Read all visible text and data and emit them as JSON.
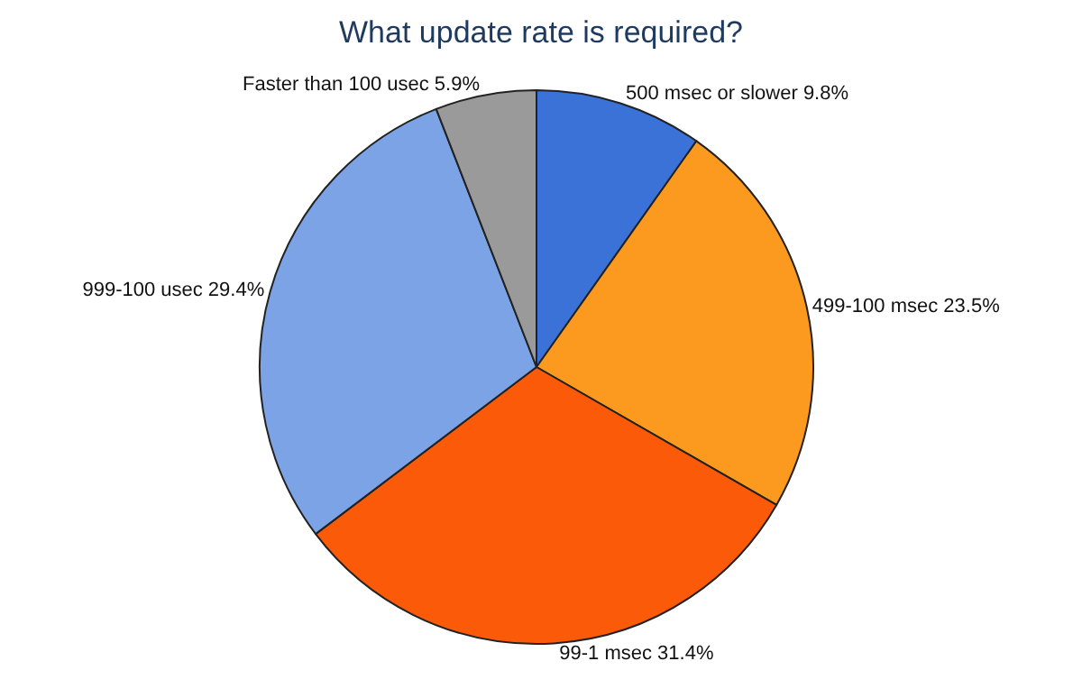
{
  "chart_data": {
    "type": "pie",
    "title": "What update rate is required?",
    "categories": [
      "500 msec or slower",
      "499-100 msec",
      "99-1 msec",
      "999-100 usec",
      "Faster than 100 usec"
    ],
    "values": [
      9.8,
      23.5,
      31.4,
      29.4,
      5.9
    ],
    "value_labels": [
      "9.8%",
      "23.5%",
      "31.4%",
      "29.4%",
      "5.9%"
    ],
    "colors": [
      "#3a72d8",
      "#fb9a1e",
      "#fb5a08",
      "#7ba3e6",
      "#9a9a9a"
    ],
    "legend": false
  }
}
